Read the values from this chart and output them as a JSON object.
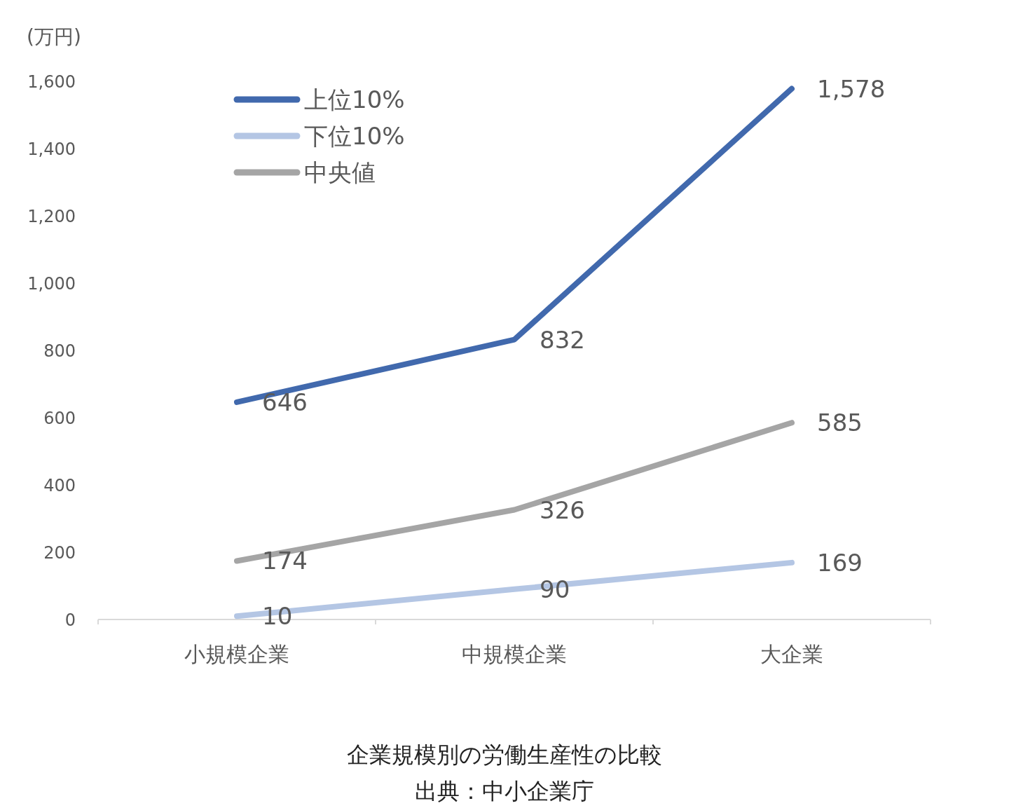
{
  "chart_data": {
    "type": "line",
    "ylabel": "(万円)",
    "categories": [
      "小規模企業",
      "中規模企業",
      "大企業"
    ],
    "series": [
      {
        "name": "上位10%",
        "color": "#4169ad",
        "values": [
          646,
          832,
          1578
        ],
        "value_labels": [
          "646",
          "832",
          "1,578"
        ]
      },
      {
        "name": "下位10%",
        "color": "#b4c6e4",
        "values": [
          10,
          90,
          169
        ],
        "value_labels": [
          "10",
          "90",
          "169"
        ]
      },
      {
        "name": "中央値",
        "color": "#a5a5a5",
        "values": [
          174,
          326,
          585
        ],
        "value_labels": [
          "174",
          "326",
          "585"
        ]
      }
    ],
    "ylim": [
      0,
      1600
    ],
    "yticks": [
      0,
      200,
      400,
      600,
      800,
      {
        "value": 1000,
        "label": "1,000"
      },
      {
        "value": 1200,
        "label": "1,200"
      },
      {
        "value": 1400,
        "label": "1,400"
      },
      {
        "value": 1600,
        "label": "1,600"
      }
    ],
    "legend": "top left",
    "grid": false,
    "line_style": "solid",
    "marker": "none",
    "annotations": [
      "企業規模別の労働生産性の比較",
      "出典：中小企業庁"
    ]
  }
}
